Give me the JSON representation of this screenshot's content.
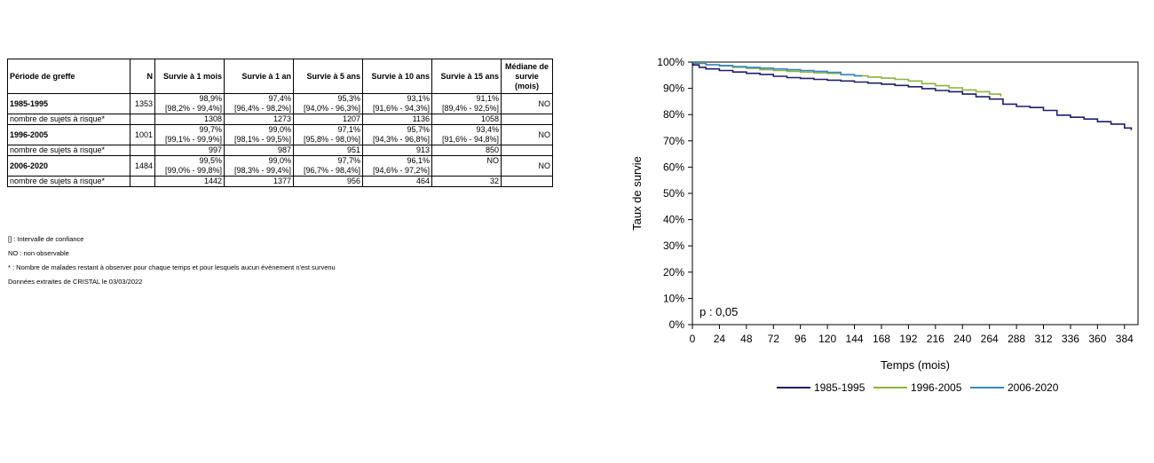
{
  "table": {
    "headers": [
      "Période de greffe",
      "N",
      "Survie à 1 mois",
      "Survie à 1 an",
      "Survie à 5 ans",
      "Survie à 10 ans",
      "Survie à 15 ans",
      "Médiane de survie (mois)"
    ],
    "groups": [
      {
        "period": "1985-1995",
        "n": "1353",
        "survival": [
          "98,9%",
          "97,4%",
          "95,3%",
          "93,1%",
          "91,1%"
        ],
        "ci": [
          "[98,2% - 99,4%]",
          "[96,4% - 98,2%]",
          "[94,0% - 96,3%]",
          "[91,6% - 94,3%]",
          "[89,4% - 92,5%]"
        ],
        "median": "NO",
        "risk_label": "nombre de sujets à risque*",
        "at_risk": [
          "1308",
          "1273",
          "1207",
          "1136",
          "1058"
        ]
      },
      {
        "period": "1996-2005",
        "n": "1001",
        "survival": [
          "99,7%",
          "99,0%",
          "97,1%",
          "95,7%",
          "93,4%"
        ],
        "ci": [
          "[99,1% - 99,9%]",
          "[98,1% - 99,5%]",
          "[95,8% - 98,0%]",
          "[94,3% - 96,8%]",
          "[91,6% - 94,8%]"
        ],
        "median": "NO",
        "risk_label": "nombre de sujets à risque*",
        "at_risk": [
          "997",
          "987",
          "951",
          "913",
          "850"
        ]
      },
      {
        "period": "2006-2020",
        "n": "1484",
        "survival": [
          "99,5%",
          "99,0%",
          "97,7%",
          "96,1%",
          "NO"
        ],
        "ci": [
          "[99,0% - 99,8%]",
          "[98,3% - 99,4%]",
          "[96,7% - 98,4%]",
          "[94,6% - 97,2%]",
          ""
        ],
        "median": "NO",
        "risk_label": "nombre de sujets à risque*",
        "at_risk": [
          "1442",
          "1377",
          "956",
          "464",
          "32"
        ]
      }
    ]
  },
  "notes": {
    "ci": "[] : Intervalle de confiance",
    "no": "NO : non observable",
    "star": "* : Nombre de malades restant à observer pour chaque temps et pour lesquels aucun évènement n'est survenu",
    "source": "Données extraites de CRISTAL le 03/03/2022"
  },
  "chart_data": {
    "type": "line",
    "ylabel": "Taux de survie",
    "xlabel": "Temps (mois)",
    "annotation": "p : 0,05",
    "xlim": [
      0,
      396
    ],
    "ylim": [
      0,
      100
    ],
    "xticks": [
      0,
      24,
      48,
      72,
      96,
      120,
      144,
      168,
      192,
      216,
      240,
      264,
      288,
      312,
      336,
      360,
      384
    ],
    "yticks": [
      0,
      10,
      20,
      30,
      40,
      50,
      60,
      70,
      80,
      90,
      100
    ],
    "ytick_labels": [
      "0%",
      "10%",
      "20%",
      "30%",
      "40%",
      "50%",
      "60%",
      "70%",
      "80%",
      "90%",
      "100%"
    ],
    "legend_position": "bottom",
    "series": [
      {
        "name": "1985-1995",
        "color": "#1f1f6b",
        "x": [
          0,
          1,
          6,
          12,
          24,
          36,
          48,
          60,
          72,
          84,
          96,
          108,
          120,
          132,
          144,
          156,
          168,
          180,
          192,
          204,
          216,
          228,
          240,
          252,
          264,
          276,
          288,
          300,
          312,
          324,
          336,
          348,
          360,
          372,
          384,
          390
        ],
        "y": [
          100,
          98.9,
          98.0,
          97.4,
          96.8,
          96.2,
          95.7,
          95.3,
          94.6,
          94.1,
          93.8,
          93.4,
          93.1,
          92.8,
          92.4,
          92.0,
          91.6,
          91.1,
          90.6,
          89.9,
          89.2,
          88.7,
          87.8,
          86.8,
          85.9,
          84.0,
          83.1,
          82.7,
          81.6,
          79.8,
          79.0,
          78.3,
          77.3,
          76.4,
          74.9,
          74.1
        ]
      },
      {
        "name": "1996-2005",
        "color": "#8ab43c",
        "x": [
          0,
          1,
          12,
          24,
          36,
          48,
          60,
          72,
          84,
          96,
          108,
          120,
          132,
          144,
          156,
          168,
          180,
          192,
          204,
          216,
          228,
          240,
          252,
          264,
          274
        ],
        "y": [
          100,
          99.7,
          99.0,
          98.5,
          98.0,
          97.6,
          97.1,
          96.8,
          96.5,
          96.2,
          95.9,
          95.7,
          95.2,
          94.8,
          94.3,
          93.9,
          93.4,
          92.8,
          91.8,
          91.0,
          90.2,
          89.4,
          88.7,
          87.8,
          86.9
        ]
      },
      {
        "name": "2006-2020",
        "color": "#3a86d0",
        "x": [
          0,
          1,
          12,
          24,
          36,
          48,
          60,
          72,
          84,
          96,
          108,
          120,
          132,
          144,
          150
        ],
        "y": [
          100,
          99.5,
          99.0,
          98.7,
          98.3,
          98.0,
          97.7,
          97.4,
          97.1,
          96.8,
          96.5,
          96.1,
          95.2,
          94.8,
          94.4
        ]
      }
    ]
  }
}
